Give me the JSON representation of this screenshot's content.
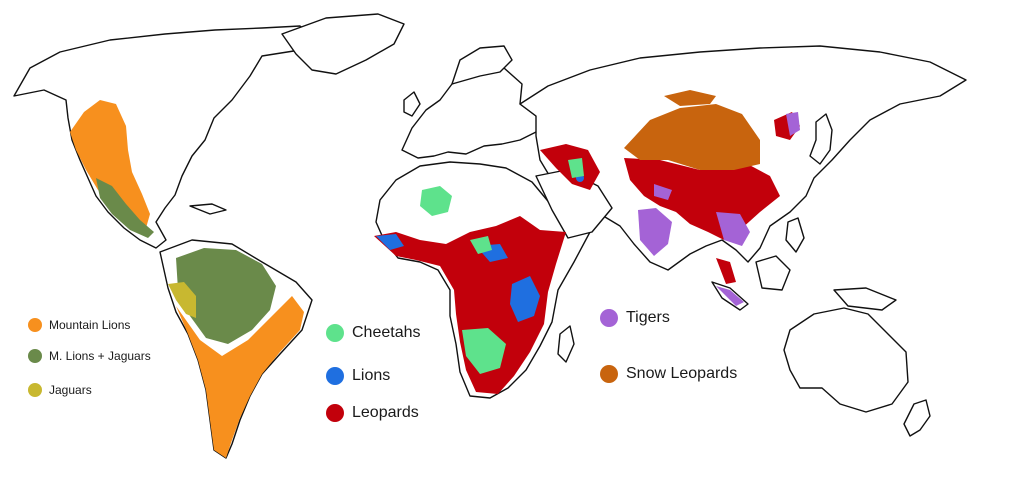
{
  "colors": {
    "mountain_lions": "#f7901e",
    "m_lions_jaguars": "#6a8a4a",
    "jaguars": "#c8b830",
    "cheetahs": "#5ee28c",
    "lions": "#1f6fe0",
    "leopards": "#c2000b",
    "tigers": "#a463d6",
    "snow_leopards": "#c8640e"
  },
  "legend": {
    "mountain_lions": "Mountain Lions",
    "m_lions_jaguars": "M. Lions + Jaguars",
    "jaguars": "Jaguars",
    "cheetahs": "Cheetahs",
    "lions": "Lions",
    "leopards": "Leopards",
    "tigers": "Tigers",
    "snow_leopards": "Snow Leopards"
  }
}
